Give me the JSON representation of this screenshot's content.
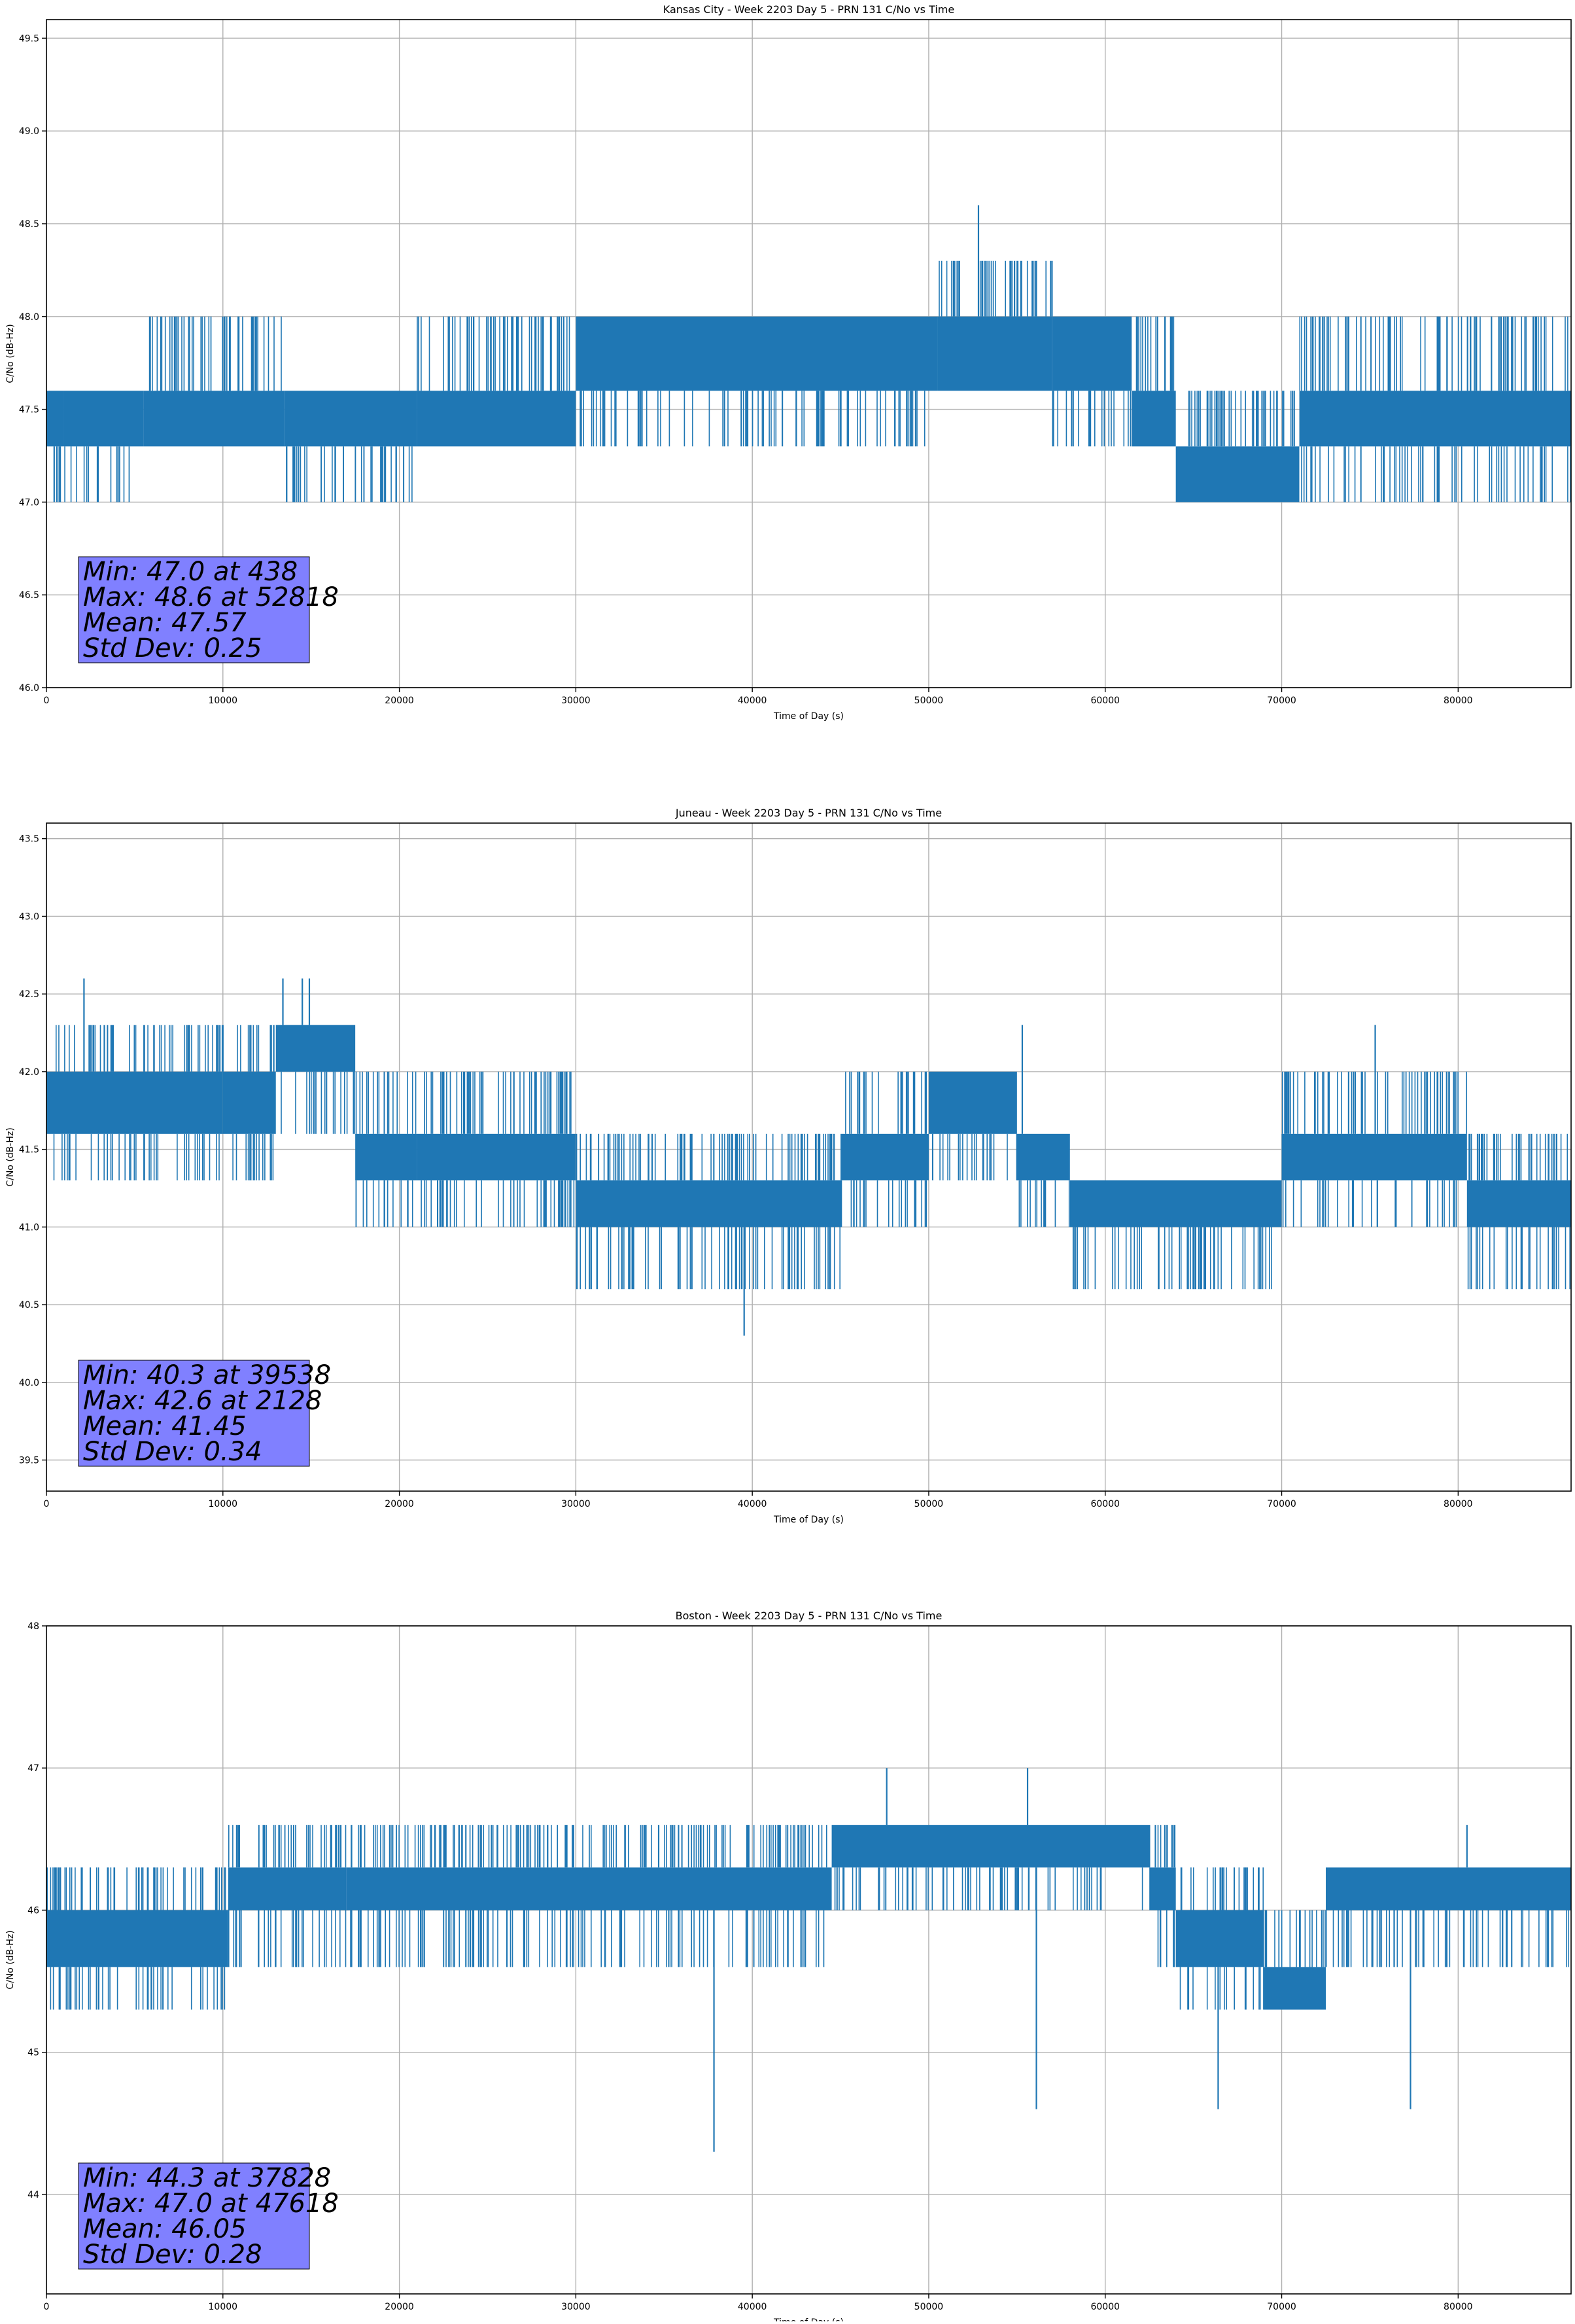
{
  "chart_data": [
    {
      "type": "line",
      "title": "Kansas City - Week 2203 Day 5 - PRN 131 C/No vs Time",
      "xlabel": "Time of Day (s)",
      "ylabel": "C/No (dB-Hz)",
      "xlim": [
        0,
        86400
      ],
      "ylim": [
        46.0,
        49.6
      ],
      "xticks": [
        0,
        10000,
        20000,
        30000,
        40000,
        50000,
        60000,
        70000,
        80000
      ],
      "yticks": [
        "46.0",
        "46.5",
        "47.0",
        "47.5",
        "48.0",
        "48.5",
        "49.0",
        "49.5"
      ],
      "grid": true,
      "series_color": "#1f77b4",
      "segments": [
        {
          "x0": 0,
          "x1": 1000,
          "lo": 47.3,
          "hi": 47.6,
          "min": 47.0,
          "max": 47.6
        },
        {
          "x0": 1000,
          "x1": 5500,
          "lo": 47.3,
          "hi": 47.6,
          "min": 47.0,
          "max": 47.6
        },
        {
          "x0": 5500,
          "x1": 13500,
          "lo": 47.3,
          "hi": 47.6,
          "min": 47.3,
          "max": 48.0
        },
        {
          "x0": 13500,
          "x1": 21000,
          "lo": 47.3,
          "hi": 47.6,
          "min": 47.0,
          "max": 47.6
        },
        {
          "x0": 21000,
          "x1": 30000,
          "lo": 47.3,
          "hi": 47.6,
          "min": 47.3,
          "max": 48.0
        },
        {
          "x0": 30000,
          "x1": 50500,
          "lo": 47.6,
          "hi": 48.0,
          "min": 47.3,
          "max": 48.0
        },
        {
          "x0": 50500,
          "x1": 57000,
          "lo": 47.6,
          "hi": 48.0,
          "min": 47.6,
          "max": 48.3
        },
        {
          "x0": 57000,
          "x1": 61500,
          "lo": 47.6,
          "hi": 48.0,
          "min": 47.3,
          "max": 48.0
        },
        {
          "x0": 61500,
          "x1": 64000,
          "lo": 47.3,
          "hi": 47.6,
          "min": 47.3,
          "max": 48.0
        },
        {
          "x0": 64000,
          "x1": 71000,
          "lo": 47.0,
          "hi": 47.3,
          "min": 47.0,
          "max": 47.6
        },
        {
          "x0": 71000,
          "x1": 86400,
          "lo": 47.3,
          "hi": 47.6,
          "min": 47.0,
          "max": 48.0
        }
      ],
      "spikes": [
        {
          "x": 438,
          "y": 47.0
        },
        {
          "x": 52818,
          "y": 48.6
        },
        {
          "x": 19000,
          "y": 47.0
        },
        {
          "x": 80700,
          "y": 48.0
        }
      ],
      "stats": {
        "min": "Min: 47.0 at 438",
        "max": "Max: 48.6 at 52818",
        "mean": "Mean: 47.57",
        "std": "Std Dev: 0.25"
      }
    },
    {
      "type": "line",
      "title": "Juneau - Week 2203 Day 5 - PRN 131 C/No vs Time",
      "xlabel": "Time of Day (s)",
      "ylabel": "C/No (dB-Hz)",
      "xlim": [
        0,
        86400
      ],
      "ylim": [
        39.3,
        43.6
      ],
      "xticks": [
        0,
        10000,
        20000,
        30000,
        40000,
        50000,
        60000,
        70000,
        80000
      ],
      "yticks": [
        "39.5",
        "40.0",
        "40.5",
        "41.0",
        "41.5",
        "42.0",
        "42.5",
        "43.0",
        "43.5"
      ],
      "grid": true,
      "series_color": "#1f77b4",
      "segments": [
        {
          "x0": 0,
          "x1": 10000,
          "lo": 41.6,
          "hi": 42.0,
          "min": 41.3,
          "max": 42.3
        },
        {
          "x0": 10000,
          "x1": 13000,
          "lo": 41.6,
          "hi": 42.0,
          "min": 41.3,
          "max": 42.3
        },
        {
          "x0": 13000,
          "x1": 17500,
          "lo": 42.0,
          "hi": 42.3,
          "min": 41.6,
          "max": 42.3
        },
        {
          "x0": 17500,
          "x1": 21000,
          "lo": 41.3,
          "hi": 41.6,
          "min": 41.0,
          "max": 42.0
        },
        {
          "x0": 21000,
          "x1": 30000,
          "lo": 41.3,
          "hi": 41.6,
          "min": 41.0,
          "max": 42.0
        },
        {
          "x0": 30000,
          "x1": 45000,
          "lo": 41.0,
          "hi": 41.3,
          "min": 40.6,
          "max": 41.6
        },
        {
          "x0": 45000,
          "x1": 50000,
          "lo": 41.3,
          "hi": 41.6,
          "min": 41.0,
          "max": 42.0
        },
        {
          "x0": 50000,
          "x1": 55000,
          "lo": 41.6,
          "hi": 42.0,
          "min": 41.3,
          "max": 42.0
        },
        {
          "x0": 55000,
          "x1": 58000,
          "lo": 41.3,
          "hi": 41.6,
          "min": 41.0,
          "max": 41.6
        },
        {
          "x0": 58000,
          "x1": 70000,
          "lo": 41.0,
          "hi": 41.3,
          "min": 40.6,
          "max": 41.3
        },
        {
          "x0": 70000,
          "x1": 80500,
          "lo": 41.3,
          "hi": 41.6,
          "min": 41.0,
          "max": 42.0
        },
        {
          "x0": 80500,
          "x1": 86400,
          "lo": 41.0,
          "hi": 41.3,
          "min": 40.6,
          "max": 41.6
        }
      ],
      "spikes": [
        {
          "x": 39538,
          "y": 40.3
        },
        {
          "x": 2128,
          "y": 42.6
        },
        {
          "x": 13400,
          "y": 42.6
        },
        {
          "x": 14500,
          "y": 42.6
        },
        {
          "x": 14900,
          "y": 42.6
        },
        {
          "x": 55300,
          "y": 42.3
        },
        {
          "x": 75300,
          "y": 42.3
        }
      ],
      "stats": {
        "min": "Min: 40.3 at 39538",
        "max": "Max: 42.6 at 2128",
        "mean": "Mean: 41.45",
        "std": "Std Dev: 0.34"
      }
    },
    {
      "type": "line",
      "title": "Boston - Week 2203 Day 5 - PRN 131 C/No vs Time",
      "xlabel": "Time of Day (s)",
      "ylabel": "C/No (dB-Hz)",
      "xlim": [
        0,
        86400
      ],
      "ylim": [
        43.3,
        48.0
      ],
      "xticks": [
        0,
        10000,
        20000,
        30000,
        40000,
        50000,
        60000,
        70000,
        80000
      ],
      "yticks": [
        "44",
        "45",
        "46",
        "47",
        "48"
      ],
      "grid": true,
      "series_color": "#1f77b4",
      "segments": [
        {
          "x0": 0,
          "x1": 10300,
          "lo": 45.6,
          "hi": 46.0,
          "min": 45.3,
          "max": 46.3
        },
        {
          "x0": 10300,
          "x1": 17000,
          "lo": 46.0,
          "hi": 46.3,
          "min": 45.6,
          "max": 46.6
        },
        {
          "x0": 17000,
          "x1": 44500,
          "lo": 46.0,
          "hi": 46.3,
          "min": 45.6,
          "max": 46.6
        },
        {
          "x0": 44500,
          "x1": 62500,
          "lo": 46.3,
          "hi": 46.6,
          "min": 46.0,
          "max": 46.6
        },
        {
          "x0": 62500,
          "x1": 64000,
          "lo": 46.0,
          "hi": 46.3,
          "min": 45.6,
          "max": 46.6
        },
        {
          "x0": 64000,
          "x1": 69000,
          "lo": 45.6,
          "hi": 46.0,
          "min": 45.3,
          "max": 46.3
        },
        {
          "x0": 69000,
          "x1": 72500,
          "lo": 45.3,
          "hi": 45.6,
          "min": 45.3,
          "max": 46.0
        },
        {
          "x0": 72500,
          "x1": 86400,
          "lo": 46.0,
          "hi": 46.3,
          "min": 45.6,
          "max": 46.3
        }
      ],
      "spikes": [
        {
          "x": 37828,
          "y": 44.3
        },
        {
          "x": 47618,
          "y": 47.0
        },
        {
          "x": 55600,
          "y": 47.0
        },
        {
          "x": 56100,
          "y": 44.6
        },
        {
          "x": 66400,
          "y": 44.6
        },
        {
          "x": 77300,
          "y": 44.6
        },
        {
          "x": 80500,
          "y": 46.6
        }
      ],
      "stats": {
        "min": "Min: 44.3 at 37828",
        "max": "Max: 47.0 at 47618",
        "mean": "Mean: 46.05",
        "std": "Std Dev: 0.28"
      }
    }
  ]
}
